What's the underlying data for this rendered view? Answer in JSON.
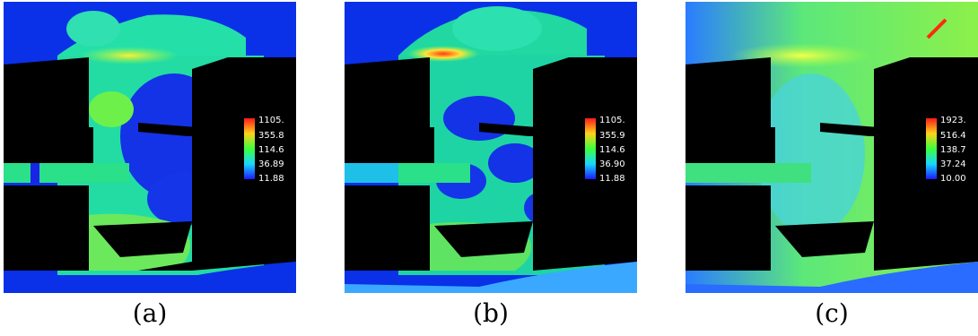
{
  "panels": [
    {
      "id": "a",
      "caption": "(a)",
      "colorbar": {
        "labels": [
          "1105.",
          "355.8",
          "114.6",
          "36.89",
          "11.88"
        ]
      },
      "field_colors": {
        "background": "#1fe08c",
        "low": "#1a24e8",
        "high": "#ffe23a",
        "peak": "#ff3a1a"
      }
    },
    {
      "id": "b",
      "caption": "(b)",
      "colorbar": {
        "labels": [
          "1105.",
          "355.9",
          "114.6",
          "36.90",
          "11.88"
        ]
      },
      "field_colors": {
        "background": "#1fd8a0",
        "low": "#1a24e8",
        "high": "#ffe23a",
        "peak": "#ff2a10"
      }
    },
    {
      "id": "c",
      "caption": "(c)",
      "colorbar": {
        "labels": [
          "1923.",
          "516.4",
          "138.7",
          "37.24",
          "10.00"
        ]
      },
      "field_colors": {
        "background": "#4fe07a",
        "low": "#3aa8ff",
        "high": "#e8f040",
        "peak": "#ff2a10"
      }
    }
  ]
}
